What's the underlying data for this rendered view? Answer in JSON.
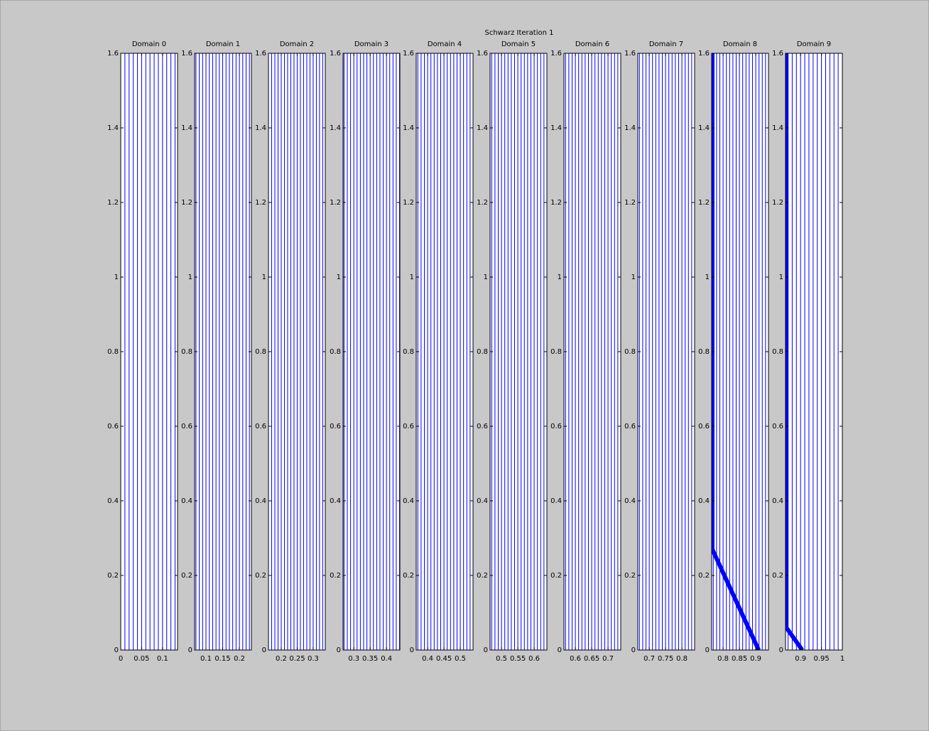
{
  "title": "Schwarz Iteration 1",
  "chart_data": [
    {
      "type": "characteristics",
      "title": "Domain 0",
      "xlim": [
        0,
        0.136
      ],
      "xticks": [
        0,
        0.05,
        0.1
      ],
      "ylim": [
        0,
        1.6
      ],
      "yticks": [
        0,
        0.2,
        0.4,
        0.6,
        0.8,
        1,
        1.2,
        1.4,
        1.6
      ],
      "color": "#0000ff",
      "lines": [
        0.01,
        0.02,
        0.03,
        0.04,
        0.05,
        0.06,
        0.07,
        0.08,
        0.09,
        0.1,
        0.11,
        0.12,
        0.13
      ]
    },
    {
      "type": "characteristics",
      "title": "Domain 1",
      "xlim": [
        0.066,
        0.236
      ],
      "xticks": [
        0.1,
        0.15,
        0.2
      ],
      "ylim": [
        0,
        1.6
      ],
      "yticks": [
        0,
        0.2,
        0.4,
        0.6,
        0.8,
        1,
        1.2,
        1.4,
        1.6
      ],
      "color": "#0000ff",
      "lines": [
        0.07,
        0.08,
        0.09,
        0.1,
        0.11,
        0.12,
        0.13,
        0.14,
        0.15,
        0.16,
        0.17,
        0.18,
        0.19,
        0.2,
        0.21,
        0.22,
        0.23
      ]
    },
    {
      "type": "characteristics",
      "title": "Domain 2",
      "xlim": [
        0.16,
        0.338
      ],
      "xticks": [
        0.2,
        0.25,
        0.3
      ],
      "ylim": [
        0,
        1.6
      ],
      "yticks": [
        0,
        0.2,
        0.4,
        0.6,
        0.8,
        1,
        1.2,
        1.4,
        1.6
      ],
      "color": "#0000ff",
      "lines": [
        0.17,
        0.18,
        0.19,
        0.2,
        0.21,
        0.22,
        0.23,
        0.24,
        0.25,
        0.26,
        0.27,
        0.28,
        0.29,
        0.3,
        0.31,
        0.32,
        0.33
      ]
    },
    {
      "type": "characteristics",
      "title": "Domain 3",
      "xlim": [
        0.267,
        0.441
      ],
      "xticks": [
        0.3,
        0.35,
        0.4
      ],
      "ylim": [
        0,
        1.6
      ],
      "yticks": [
        0,
        0.2,
        0.4,
        0.6,
        0.8,
        1,
        1.2,
        1.4,
        1.6
      ],
      "color": "#0000ff",
      "lines": [
        0.27,
        0.28,
        0.29,
        0.3,
        0.31,
        0.32,
        0.33,
        0.34,
        0.35,
        0.36,
        0.37,
        0.38,
        0.39,
        0.4,
        0.41,
        0.42,
        0.43,
        0.44
      ]
    },
    {
      "type": "characteristics",
      "title": "Domain 4",
      "xlim": [
        0.365,
        0.539
      ],
      "xticks": [
        0.4,
        0.45,
        0.5
      ],
      "ylim": [
        0,
        1.6
      ],
      "yticks": [
        0,
        0.2,
        0.4,
        0.6,
        0.8,
        1,
        1.2,
        1.4,
        1.6
      ],
      "color": "#0000ff",
      "lines": [
        0.37,
        0.38,
        0.39,
        0.4,
        0.41,
        0.42,
        0.43,
        0.44,
        0.45,
        0.46,
        0.47,
        0.48,
        0.49,
        0.5,
        0.51,
        0.52,
        0.53
      ]
    },
    {
      "type": "characteristics",
      "title": "Domain 5",
      "xlim": [
        0.465,
        0.639
      ],
      "xticks": [
        0.5,
        0.55,
        0.6
      ],
      "ylim": [
        0,
        1.6
      ],
      "yticks": [
        0,
        0.2,
        0.4,
        0.6,
        0.8,
        1,
        1.2,
        1.4,
        1.6
      ],
      "color": "#0000ff",
      "lines": [
        0.47,
        0.48,
        0.49,
        0.5,
        0.51,
        0.52,
        0.53,
        0.54,
        0.55,
        0.56,
        0.57,
        0.58,
        0.59,
        0.6,
        0.61,
        0.62,
        0.63
      ]
    },
    {
      "type": "characteristics",
      "title": "Domain 6",
      "xlim": [
        0.565,
        0.739
      ],
      "xticks": [
        0.6,
        0.65,
        0.7
      ],
      "ylim": [
        0,
        1.6
      ],
      "yticks": [
        0,
        0.2,
        0.4,
        0.6,
        0.8,
        1,
        1.2,
        1.4,
        1.6
      ],
      "color": "#0000ff",
      "lines": [
        0.57,
        0.58,
        0.59,
        0.6,
        0.61,
        0.62,
        0.63,
        0.64,
        0.65,
        0.66,
        0.67,
        0.68,
        0.69,
        0.7,
        0.71,
        0.72,
        0.73
      ]
    },
    {
      "type": "characteristics",
      "title": "Domain 7",
      "xlim": [
        0.665,
        0.839
      ],
      "xticks": [
        0.7,
        0.75,
        0.8
      ],
      "ylim": [
        0,
        1.6
      ],
      "yticks": [
        0,
        0.2,
        0.4,
        0.6,
        0.8,
        1,
        1.2,
        1.4,
        1.6
      ],
      "color": "#0000ff",
      "lines": [
        0.67,
        0.68,
        0.69,
        0.7,
        0.71,
        0.72,
        0.73,
        0.74,
        0.75,
        0.76,
        0.77,
        0.78,
        0.79,
        0.8,
        0.81,
        0.82,
        0.83
      ]
    },
    {
      "type": "characteristics",
      "title": "Domain 8",
      "xlim": [
        0.765,
        0.939
      ],
      "xticks": [
        0.8,
        0.85,
        0.9
      ],
      "ylim": [
        0,
        1.6
      ],
      "yticks": [
        0,
        0.2,
        0.4,
        0.6,
        0.8,
        1,
        1.2,
        1.4,
        1.6
      ],
      "color": "#0000ff",
      "lines": [
        0.77,
        0.78,
        0.79,
        0.8,
        0.81,
        0.82,
        0.83,
        0.84,
        0.85,
        0.86,
        0.87,
        0.88,
        0.89,
        0.9,
        0.91,
        0.92,
        0.93
      ],
      "shock": {
        "x": [
          0.767,
          0.767,
          0.909
        ],
        "y": [
          1.6,
          0.27,
          0
        ]
      }
    },
    {
      "type": "characteristics",
      "title": "Domain 9",
      "xlim": [
        0.864,
        1
      ],
      "xticks": [
        0.9,
        0.95,
        1
      ],
      "ylim": [
        0,
        1.6
      ],
      "yticks": [
        0,
        0.2,
        0.4,
        0.6,
        0.8,
        1,
        1.2,
        1.4,
        1.6
      ],
      "color": "#0000ff",
      "lines": [
        0.87,
        0.88,
        0.89,
        0.9,
        0.91,
        0.92,
        0.93,
        0.94,
        0.95,
        0.96,
        0.97,
        0.98,
        0.99
      ],
      "shock": {
        "x": [
          0.866,
          0.866,
          0.904
        ],
        "y": [
          1.6,
          0.06,
          0
        ]
      }
    }
  ]
}
